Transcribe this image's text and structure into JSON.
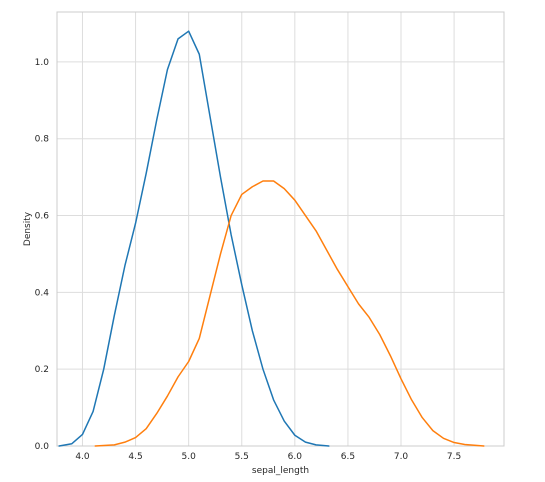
{
  "chart_data": {
    "type": "line",
    "xlabel": "sepal_length",
    "ylabel": "Density",
    "xlim": [
      3.76,
      7.97
    ],
    "ylim": [
      0.0,
      1.13
    ],
    "x_ticks": [
      4.0,
      4.5,
      5.0,
      5.5,
      6.0,
      6.5,
      7.0,
      7.5
    ],
    "x_tick_labels": [
      "4.0",
      "4.5",
      "5.0",
      "5.5",
      "6.0",
      "6.5",
      "7.0",
      "7.5"
    ],
    "y_ticks": [
      0.0,
      0.2,
      0.4,
      0.6,
      0.8,
      1.0
    ],
    "y_tick_labels": [
      "0.0",
      "0.2",
      "0.4",
      "0.6",
      "0.8",
      "1.0"
    ],
    "grid": true,
    "series": [
      {
        "color": "#1f77b4",
        "points": [
          [
            3.78,
            0.0
          ],
          [
            3.9,
            0.006
          ],
          [
            4.0,
            0.03
          ],
          [
            4.1,
            0.09
          ],
          [
            4.2,
            0.2
          ],
          [
            4.3,
            0.34
          ],
          [
            4.4,
            0.47
          ],
          [
            4.5,
            0.58
          ],
          [
            4.6,
            0.71
          ],
          [
            4.7,
            0.85
          ],
          [
            4.8,
            0.98
          ],
          [
            4.9,
            1.06
          ],
          [
            5.0,
            1.08
          ],
          [
            5.1,
            1.02
          ],
          [
            5.2,
            0.86
          ],
          [
            5.3,
            0.7
          ],
          [
            5.4,
            0.55
          ],
          [
            5.5,
            0.42
          ],
          [
            5.6,
            0.3
          ],
          [
            5.7,
            0.2
          ],
          [
            5.8,
            0.12
          ],
          [
            5.9,
            0.065
          ],
          [
            6.0,
            0.028
          ],
          [
            6.1,
            0.01
          ],
          [
            6.2,
            0.003
          ],
          [
            6.32,
            0.0
          ]
        ]
      },
      {
        "color": "#ff7f0e",
        "points": [
          [
            4.12,
            0.0
          ],
          [
            4.3,
            0.003
          ],
          [
            4.4,
            0.01
          ],
          [
            4.5,
            0.022
          ],
          [
            4.6,
            0.045
          ],
          [
            4.7,
            0.085
          ],
          [
            4.8,
            0.13
          ],
          [
            4.9,
            0.18
          ],
          [
            5.0,
            0.22
          ],
          [
            5.1,
            0.28
          ],
          [
            5.2,
            0.39
          ],
          [
            5.3,
            0.5
          ],
          [
            5.4,
            0.6
          ],
          [
            5.5,
            0.655
          ],
          [
            5.6,
            0.675
          ],
          [
            5.7,
            0.69
          ],
          [
            5.8,
            0.69
          ],
          [
            5.9,
            0.67
          ],
          [
            6.0,
            0.64
          ],
          [
            6.1,
            0.6
          ],
          [
            6.2,
            0.56
          ],
          [
            6.3,
            0.51
          ],
          [
            6.4,
            0.46
          ],
          [
            6.5,
            0.415
          ],
          [
            6.6,
            0.37
          ],
          [
            6.7,
            0.335
          ],
          [
            6.8,
            0.29
          ],
          [
            6.9,
            0.235
          ],
          [
            7.0,
            0.175
          ],
          [
            7.1,
            0.12
          ],
          [
            7.2,
            0.074
          ],
          [
            7.3,
            0.04
          ],
          [
            7.4,
            0.02
          ],
          [
            7.5,
            0.009
          ],
          [
            7.6,
            0.004
          ],
          [
            7.78,
            0.0
          ]
        ]
      }
    ]
  }
}
